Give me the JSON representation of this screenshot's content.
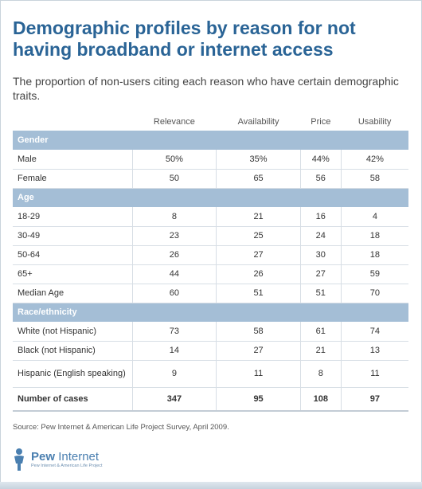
{
  "title": "Demographic profiles by reason for not having broadband or internet access",
  "subtitle": "The proportion of non-users citing each reason who have certain demographic traits.",
  "chart_data": {
    "type": "table",
    "columns": [
      "Relevance",
      "Availability",
      "Price",
      "Usability"
    ],
    "sections": [
      {
        "name": "Gender",
        "rows": [
          {
            "label": "Male",
            "values": [
              "50%",
              "35%",
              "44%",
              "42%"
            ]
          },
          {
            "label": "Female",
            "values": [
              "50",
              "65",
              "56",
              "58"
            ]
          }
        ]
      },
      {
        "name": "Age",
        "rows": [
          {
            "label": "18-29",
            "values": [
              "8",
              "21",
              "16",
              "4"
            ]
          },
          {
            "label": "30-49",
            "values": [
              "23",
              "25",
              "24",
              "18"
            ]
          },
          {
            "label": "50-64",
            "values": [
              "26",
              "27",
              "30",
              "18"
            ]
          },
          {
            "label": "65+",
            "values": [
              "44",
              "26",
              "27",
              "59"
            ]
          },
          {
            "label": "Median Age",
            "values": [
              "60",
              "51",
              "51",
              "70"
            ]
          }
        ]
      },
      {
        "name": "Race/ethnicity",
        "rows": [
          {
            "label": "White (not Hispanic)",
            "values": [
              "73",
              "58",
              "61",
              "74"
            ]
          },
          {
            "label": "Black (not Hispanic)",
            "values": [
              "14",
              "27",
              "21",
              "13"
            ]
          },
          {
            "label": "Hispanic (English speaking)",
            "values": [
              "9",
              "11",
              "8",
              "11"
            ]
          }
        ]
      }
    ],
    "totals": {
      "label": "Number of cases",
      "values": [
        "347",
        "95",
        "108",
        "97"
      ]
    }
  },
  "source": "Source: Pew Internet & American Life Project Survey, April 2009.",
  "logo": {
    "name_bold": "Pew",
    "name_regular": "Internet",
    "tagline": "Pew Internet & American Life Project",
    "icon": "person-figure-icon"
  },
  "colors": {
    "title": "#2a6496",
    "section_header": "#a4bed6",
    "logo": "#4a7fb0"
  }
}
